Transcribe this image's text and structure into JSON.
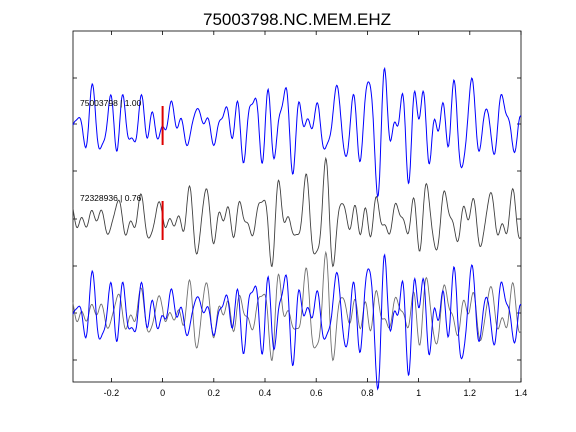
{
  "chart_data": {
    "type": "line",
    "title": "75003798.NC.MEM.EHZ",
    "xlabel": "",
    "ylabel": "",
    "xlim": [
      -0.35,
      1.4
    ],
    "x_ticks": [
      "-0.2",
      "0",
      "0.2",
      "0.4",
      "0.6",
      "0.8",
      "1",
      "1.2",
      "1.4"
    ],
    "x_tick_values": [
      -0.2,
      0,
      0.2,
      0.4,
      0.6,
      0.8,
      1.0,
      1.2,
      1.4
    ],
    "grid": false,
    "colors": {
      "template": "#0000ff",
      "detection": "#404040",
      "marker": "#dd0000"
    },
    "traces": [
      {
        "name": "75003798 | 1.00",
        "color": "#0000ff"
      },
      {
        "name": "72328936 | 0.76",
        "color": "#404040"
      }
    ],
    "overlay": "both traces superimposed",
    "pick_time": 0
  }
}
